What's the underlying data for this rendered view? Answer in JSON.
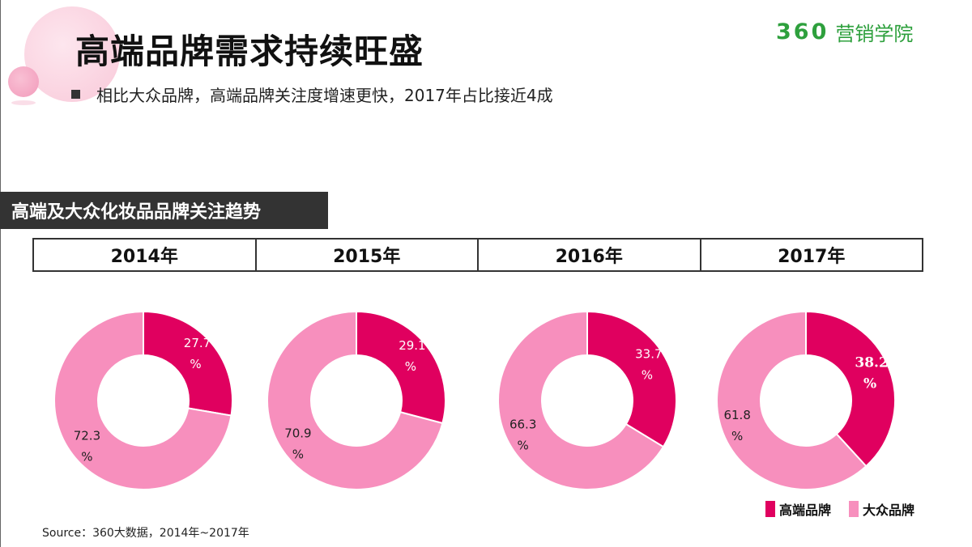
{
  "title": "高端品牌需求持续旺盛",
  "bullet": "相比大众品牌，高端品牌关注度增速更快，2017年占比接近4成",
  "logo": {
    "number": "360",
    "text": "营销学院"
  },
  "section_label": "高端及大众化妆品品牌关注趋势",
  "source": "Source：360大数据，2014年~2017年",
  "colors": {
    "premium": "#e0005f",
    "mass": "#f78fbd",
    "logo_green": "#2ea03d"
  },
  "chart_data": {
    "type": "pie",
    "subtype": "donut",
    "categories": [
      "2014年",
      "2015年",
      "2016年",
      "2017年"
    ],
    "series": [
      {
        "name": "高端品牌",
        "values": [
          27.7,
          29.1,
          33.7,
          38.2
        ],
        "color": "#e0005f"
      },
      {
        "name": "大众品牌",
        "values": [
          72.3,
          70.9,
          66.3,
          61.8
        ],
        "color": "#f78fbd"
      }
    ],
    "unit": "%",
    "legend": {
      "placement": "bottom-right",
      "entries": [
        "高端品牌",
        "大众品牌"
      ]
    }
  }
}
